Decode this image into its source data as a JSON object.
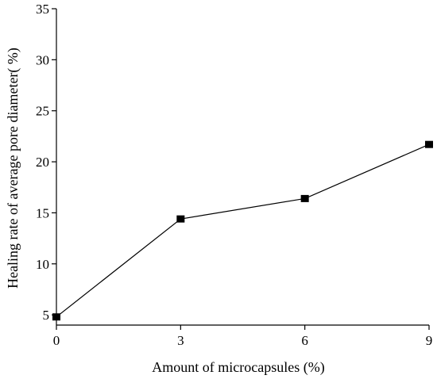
{
  "chart_data": {
    "type": "line",
    "title": "",
    "xlabel": "Amount of microcapsules (%)",
    "ylabel": "Healing rate of average pore diameter(   %)",
    "x": [
      0,
      3,
      6,
      9
    ],
    "xlim": [
      0,
      9
    ],
    "ylim": [
      4,
      35
    ],
    "x_ticks": [
      0,
      3,
      6,
      9
    ],
    "y_ticks": [
      5,
      10,
      15,
      20,
      25,
      30,
      35
    ],
    "grid": false,
    "legend": "none",
    "marker": "square",
    "colors": {
      "line": "#000000",
      "marker": "#000000"
    },
    "series": [
      {
        "values": [
          4.8,
          14.4,
          16.4,
          21.7
        ]
      }
    ]
  }
}
